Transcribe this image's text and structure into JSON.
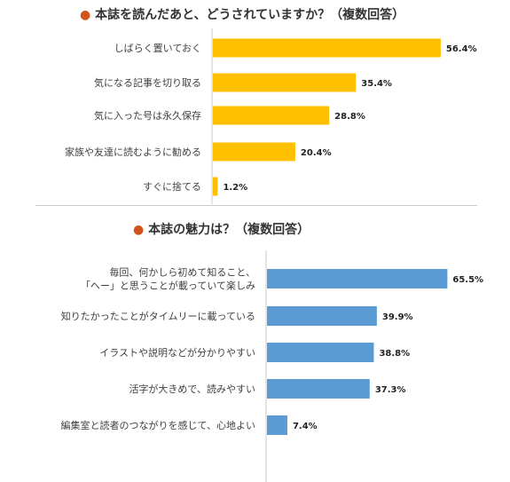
{
  "chart_data": [
    {
      "type": "bar",
      "orientation": "horizontal",
      "title": "本誌を読んだあと、どうされていますか？（複数回答）",
      "title_bullet": "●",
      "color": "#ffc000",
      "categories": [
        "しばらく置いておく",
        "気になる記事を切り取る",
        "気に入った号は永久保存",
        "家族や友達に読むように勧める",
        "すぐに捨てる"
      ],
      "values": [
        56.4,
        35.4,
        28.8,
        20.4,
        1.2
      ],
      "value_labels": [
        "56.4%",
        "35.4%",
        "28.8%",
        "20.4%",
        "1.2%"
      ],
      "unit": "%",
      "grid": false
    },
    {
      "type": "bar",
      "orientation": "horizontal",
      "title": "本誌の魅力は？（複数回答）",
      "title_bullet": "●",
      "color": "#5b9bd5",
      "categories": [
        [
          "毎回、何かしら初めて知ること、",
          "「へー」と思うことが載っていて楽しみ"
        ],
        [
          "知りたかったことがタイムリーに載っている"
        ],
        [
          "イラストや説明などが分かりやすい"
        ],
        [
          "活字が大きめで、読みやすい"
        ],
        [
          "編集室と読者のつながりを感じて、心地よい"
        ]
      ],
      "values": [
        65.5,
        39.9,
        38.8,
        37.3,
        7.4
      ],
      "value_labels": [
        "65.5%",
        "39.9%",
        "38.8%",
        "37.3%",
        "7.4%"
      ],
      "unit": "%",
      "grid": false
    }
  ]
}
